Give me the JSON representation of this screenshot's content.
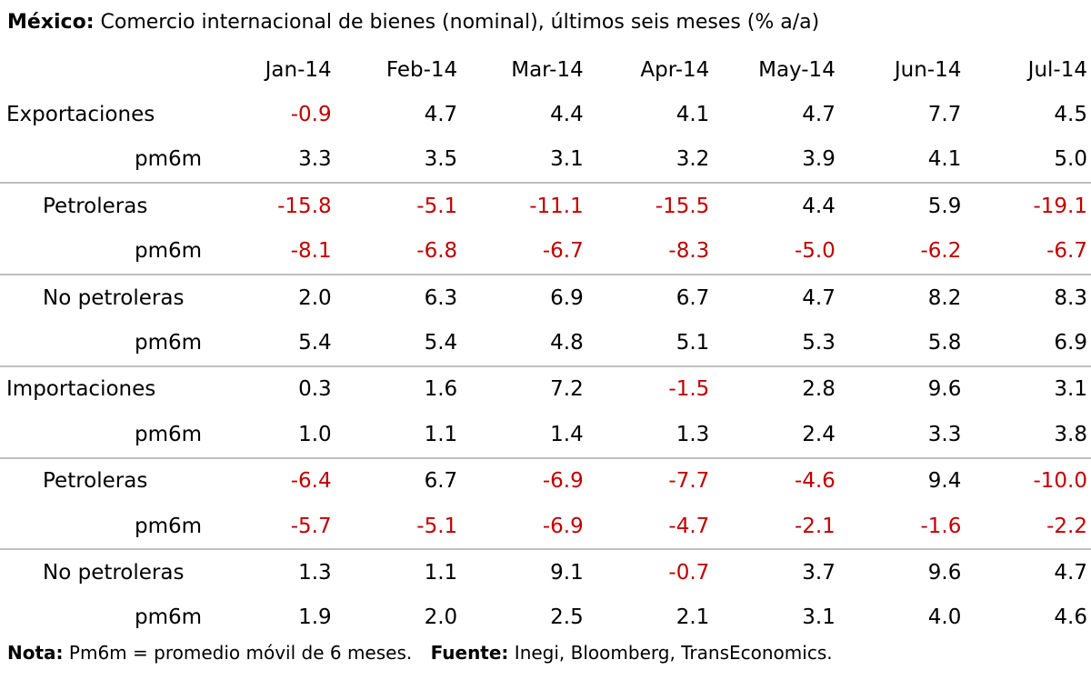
{
  "title": {
    "bold": "México:",
    "text": "Comercio internacional de bienes (nominal), últimos seis meses (% a/a)"
  },
  "table": {
    "columns": [
      "Jan-14",
      "Feb-14",
      "Mar-14",
      "Apr-14",
      "May-14",
      "Jun-14",
      "Jul-14"
    ],
    "rows": [
      {
        "label": "Exportaciones",
        "level": 0,
        "separator": false,
        "values": [
          "-0.9",
          "4.7",
          "4.4",
          "4.1",
          "4.7",
          "7.7",
          "4.5"
        ]
      },
      {
        "label": "pm6m",
        "level": 2,
        "separator": false,
        "values": [
          "3.3",
          "3.5",
          "3.1",
          "3.2",
          "3.9",
          "4.1",
          "5.0"
        ]
      },
      {
        "label": "Petroleras",
        "level": 1,
        "separator": true,
        "values": [
          "-15.8",
          "-5.1",
          "-11.1",
          "-15.5",
          "4.4",
          "5.9",
          "-19.1"
        ]
      },
      {
        "label": "pm6m",
        "level": 2,
        "separator": false,
        "values": [
          "-8.1",
          "-6.8",
          "-6.7",
          "-8.3",
          "-5.0",
          "-6.2",
          "-6.7"
        ]
      },
      {
        "label": "No petroleras",
        "level": 1,
        "separator": true,
        "values": [
          "2.0",
          "6.3",
          "6.9",
          "6.7",
          "4.7",
          "8.2",
          "8.3"
        ]
      },
      {
        "label": "pm6m",
        "level": 2,
        "separator": false,
        "values": [
          "5.4",
          "5.4",
          "4.8",
          "5.1",
          "5.3",
          "5.8",
          "6.9"
        ]
      },
      {
        "label": "Importaciones",
        "level": 0,
        "separator": true,
        "values": [
          "0.3",
          "1.6",
          "7.2",
          "-1.5",
          "2.8",
          "9.6",
          "3.1"
        ]
      },
      {
        "label": "pm6m",
        "level": 2,
        "separator": false,
        "values": [
          "1.0",
          "1.1",
          "1.4",
          "1.3",
          "2.4",
          "3.3",
          "3.8"
        ]
      },
      {
        "label": "Petroleras",
        "level": 1,
        "separator": true,
        "values": [
          "-6.4",
          "6.7",
          "-6.9",
          "-7.7",
          "-4.6",
          "9.4",
          "-10.0"
        ]
      },
      {
        "label": "pm6m",
        "level": 2,
        "separator": false,
        "values": [
          "-5.7",
          "-5.1",
          "-6.9",
          "-4.7",
          "-2.1",
          "-1.6",
          "-2.2"
        ]
      },
      {
        "label": "No petroleras",
        "level": 1,
        "separator": true,
        "values": [
          "1.3",
          "1.1",
          "9.1",
          "-0.7",
          "3.7",
          "9.6",
          "4.7"
        ]
      },
      {
        "label": "pm6m",
        "level": 2,
        "separator": false,
        "values": [
          "1.9",
          "2.0",
          "2.5",
          "2.1",
          "3.1",
          "4.0",
          "4.6"
        ]
      }
    ]
  },
  "footnote": {
    "note_label": "Nota:",
    "note_text": "Pm6m = promedio móvil de 6 meses.",
    "source_label": "Fuente:",
    "source_text": "Inegi, Bloomberg, TransEconomics."
  },
  "colors": {
    "negative": "#c00000",
    "positive": "#000000",
    "separator": "#bfbfbf"
  }
}
